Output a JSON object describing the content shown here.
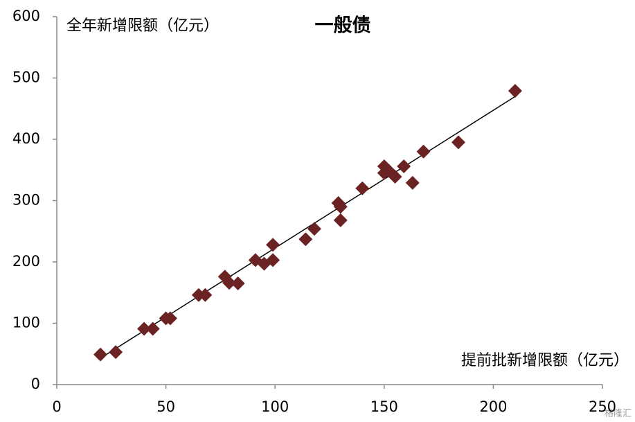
{
  "chart_data": {
    "type": "scatter",
    "title": "一般债",
    "y_label": "全年新增限额（亿元）",
    "x_label": "提前批新增限额（亿元）",
    "watermark": "格隆汇",
    "color": "#6b2222",
    "x": [
      20,
      27,
      40,
      44,
      50,
      52,
      65,
      68,
      77,
      79,
      83,
      91,
      95,
      99,
      99,
      114,
      118,
      129,
      130,
      130,
      140,
      150,
      150,
      152,
      155,
      159,
      163,
      168,
      184,
      210
    ],
    "y": [
      49,
      53,
      91,
      91,
      108,
      108,
      146,
      146,
      176,
      166,
      165,
      203,
      197,
      203,
      228,
      237,
      254,
      296,
      290,
      268,
      320,
      356,
      345,
      349,
      339,
      356,
      329,
      380,
      395,
      479
    ],
    "trendline": {
      "x": [
        20,
        211
      ],
      "y": [
        43,
        472
      ],
      "color": "#000000"
    },
    "xlim": [
      0,
      250
    ],
    "ylim": [
      0,
      600
    ],
    "xticks": [
      0,
      50,
      100,
      150,
      200,
      250
    ],
    "yticks": [
      0,
      100,
      200,
      300,
      400,
      500,
      600
    ]
  }
}
